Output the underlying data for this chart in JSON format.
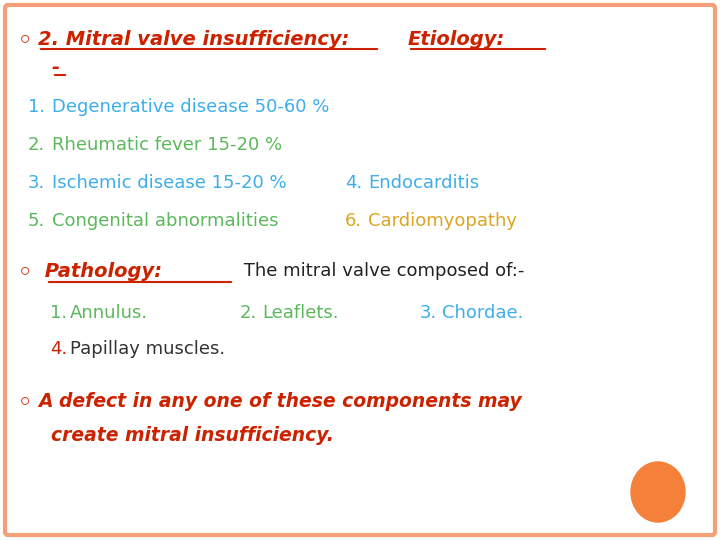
{
  "bg_color": "#ffffff",
  "border_color": "#f4a07a",
  "bullet_color": "#cc2200",
  "line1_bullet": "◦",
  "line1_text1": "2. Mitral valve insufficiency:",
  "line1_text2": "Etiology:",
  "line1_dash": "-",
  "items": [
    {
      "num": "1.",
      "text": "Degenerative disease 50-60 %",
      "color": "#3daee9"
    },
    {
      "num": "2.",
      "text": "Rheumatic fever 15-20 %",
      "color": "#5cb85c"
    },
    {
      "num": "3.",
      "text": "Ischemic disease 15-20 %",
      "color": "#3daee9",
      "extra_num": "4.",
      "extra_text": "Endocarditis",
      "extra_color": "#3daee9"
    },
    {
      "num": "5.",
      "text": "Congenital abnormalities",
      "color": "#5cb85c",
      "extra_num": "6.",
      "extra_text": "Cardiomyopathy",
      "extra_color": "#daa520"
    }
  ],
  "pathology_bullet": "◦",
  "pathology_word": " Pathology:",
  "pathology_rest": " The mitral valve composed of:-",
  "pathology_color": "#cc2200",
  "sub_items": [
    {
      "num": "1.",
      "text": "Annulus.",
      "color": "#5cb85c",
      "num2": "2.",
      "text2": "Leaflets.",
      "color2": "#5cb85c",
      "num3": "3.",
      "text3": "Chordae.",
      "color3": "#3daee9"
    },
    {
      "num": "4.",
      "text": "Papillay muscles.",
      "num_color": "#cc2200",
      "text_color": "#333333"
    }
  ],
  "final_bullet": "◦",
  "final_text1": "A defect in any one of these components may",
  "final_text2": "  create mitral insufficiency.",
  "final_color": "#cc2200",
  "orange_dot_color": "#f4803a",
  "title_color": "#cc2200"
}
